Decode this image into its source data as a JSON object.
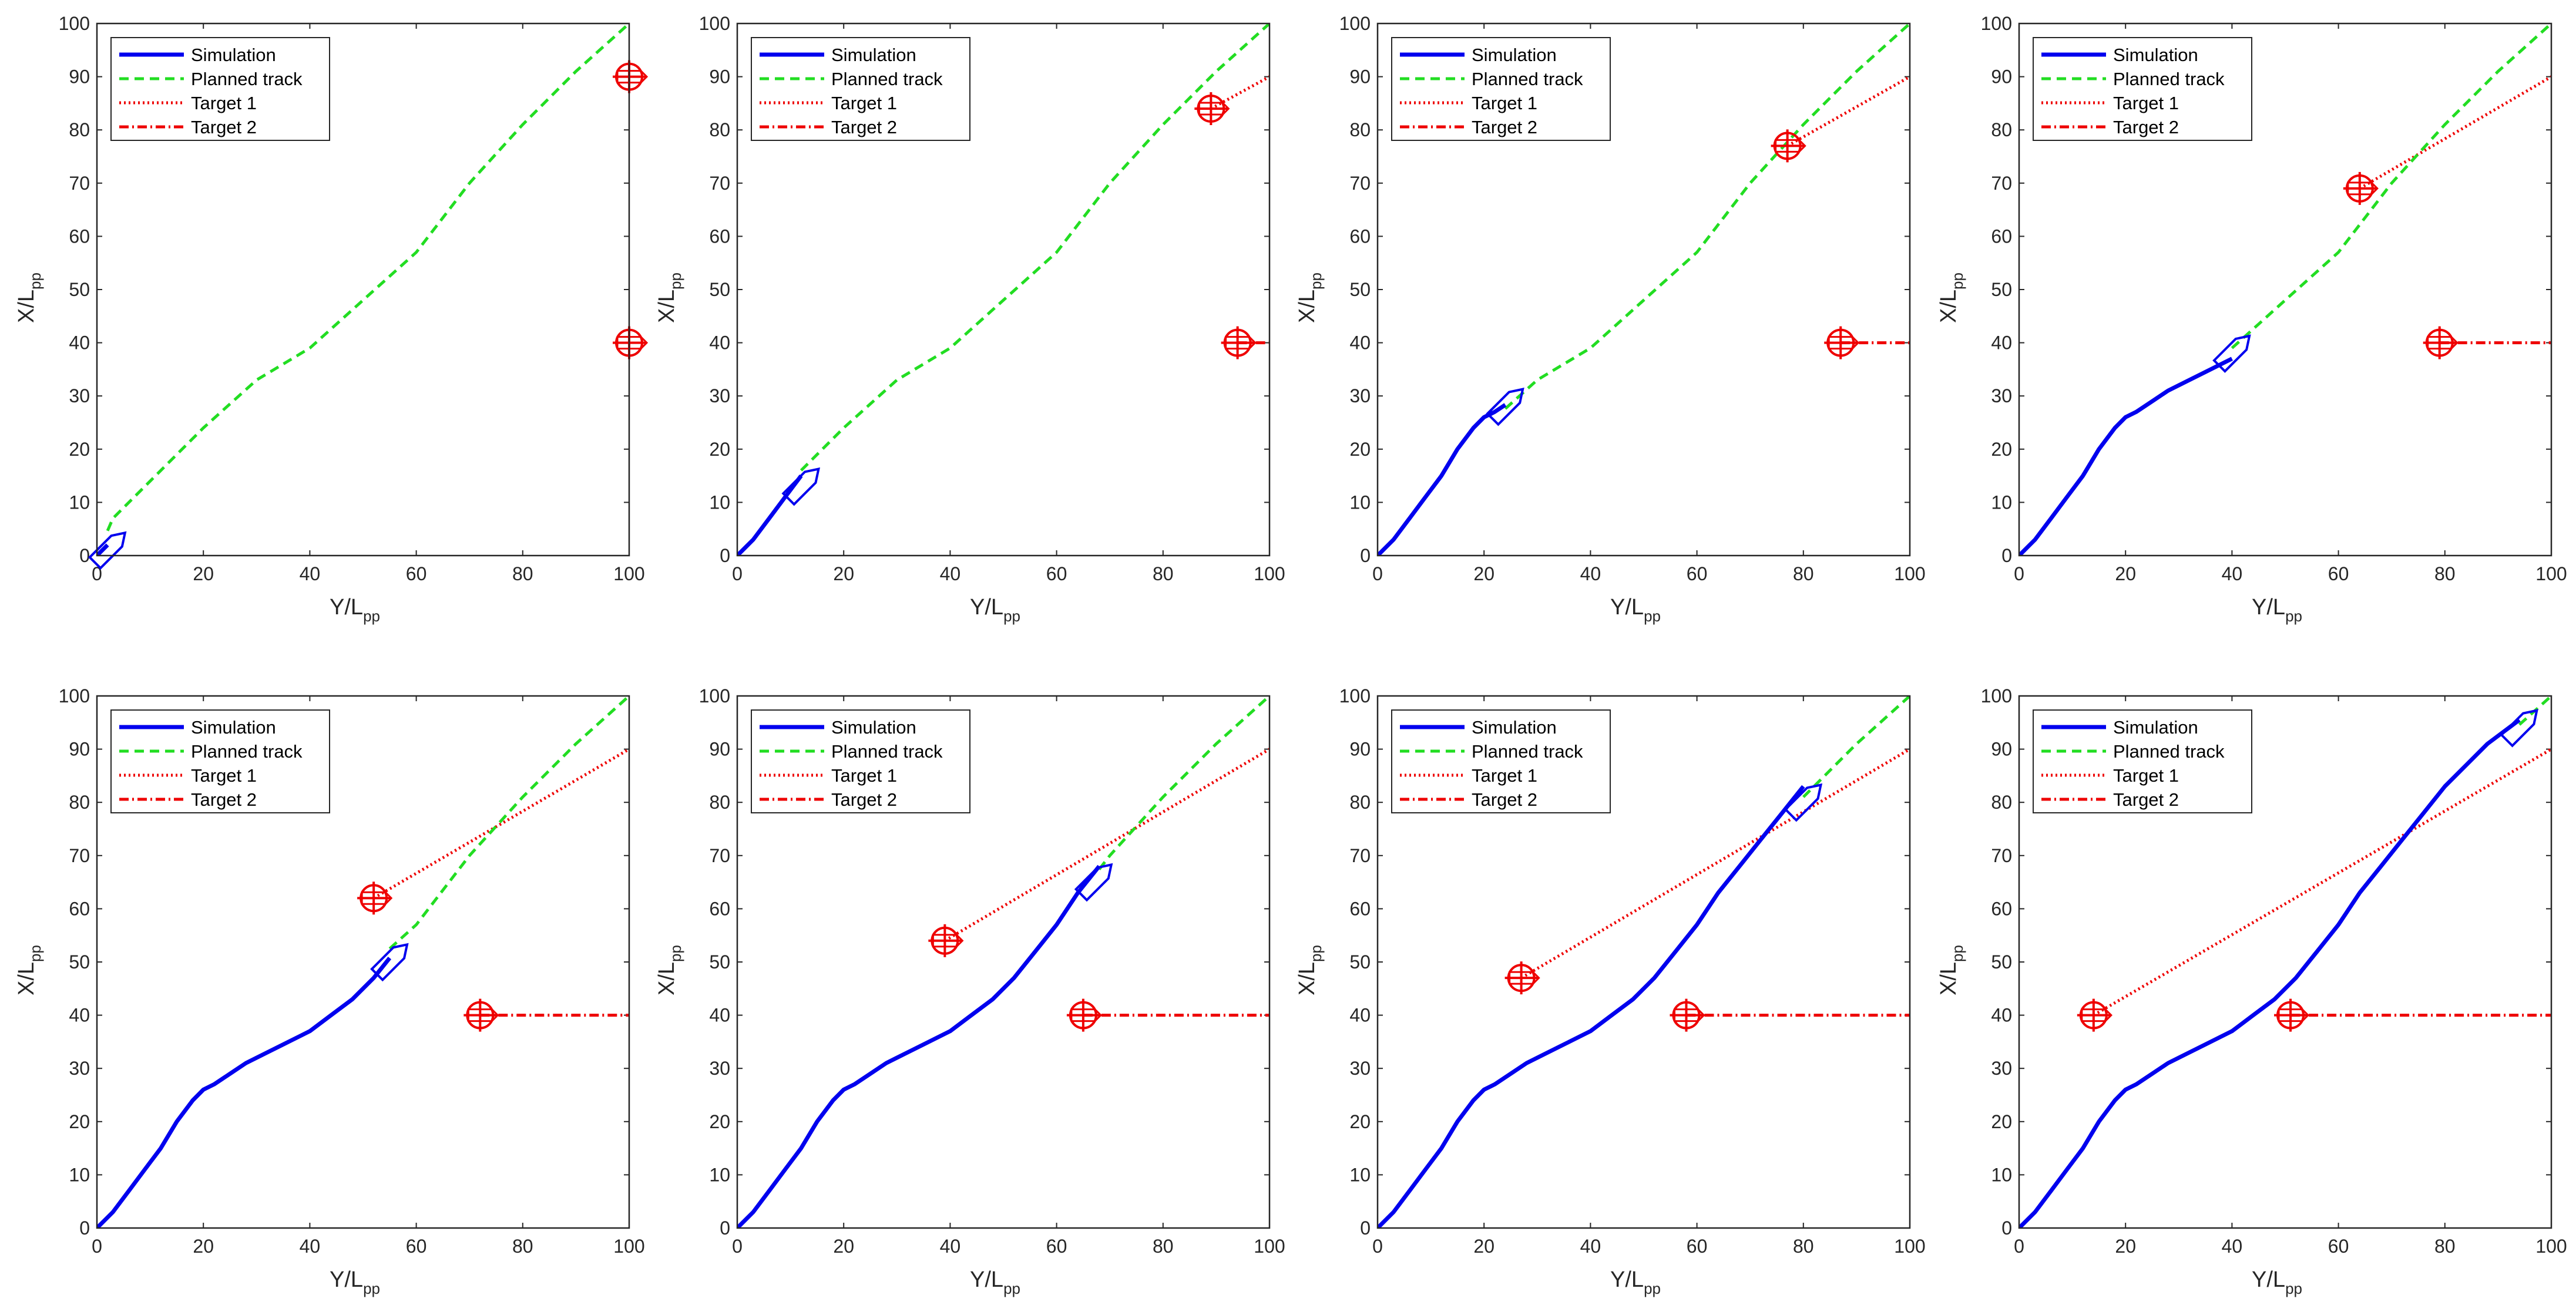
{
  "chart_data": {
    "type": "line",
    "layout": "2 rows x 4 columns of subplots",
    "shared": {
      "xlabel": "Y/L",
      "xlabel_sub": "pp",
      "ylabel": "X/L",
      "ylabel_sub": "pp",
      "xlim": [
        0,
        100
      ],
      "ylim": [
        0,
        100
      ],
      "xticks": [
        0,
        20,
        40,
        60,
        80,
        100
      ],
      "yticks": [
        0,
        10,
        20,
        30,
        40,
        50,
        60,
        70,
        80,
        90,
        100
      ],
      "legend_position": "top-left",
      "legend": [
        {
          "name": "Simulation",
          "color": "#0000ee",
          "style": "solid"
        },
        {
          "name": "Planned track",
          "color": "#22dd22",
          "style": "dashed"
        },
        {
          "name": "Target 1",
          "color": "#ee0000",
          "style": "dotted"
        },
        {
          "name": "Target 2",
          "color": "#ee0000",
          "style": "dashdot"
        }
      ],
      "planned_track": {
        "x": [
          0,
          3,
          10,
          20,
          30,
          40,
          50,
          60,
          70,
          80,
          90,
          100
        ],
        "y": [
          0,
          7,
          14,
          24,
          33,
          39,
          48,
          57,
          70,
          81,
          91,
          100
        ]
      },
      "simulation_full": {
        "x": [
          0,
          3,
          6,
          9,
          12,
          15,
          18,
          20,
          22,
          25,
          28,
          32,
          36,
          40,
          44,
          48,
          52,
          56,
          60,
          64,
          68,
          72,
          76,
          80,
          84,
          88,
          92,
          96
        ],
        "y": [
          0,
          3,
          7,
          11,
          15,
          20,
          24,
          26,
          27,
          29,
          31,
          33,
          35,
          37,
          40,
          43,
          47,
          52,
          57,
          63,
          68,
          73,
          78,
          83,
          87,
          91,
          94,
          97
        ]
      }
    },
    "panels": [
      {
        "sim_end_x": 2,
        "own_ship": {
          "x": 2,
          "y": 1
        },
        "target1": {
          "x": 100,
          "y": 90
        },
        "target2": {
          "x": 100,
          "y": 40
        }
      },
      {
        "sim_end_x": 12,
        "own_ship": {
          "x": 12,
          "y": 13
        },
        "target1": {
          "x": 89,
          "y": 84
        },
        "target2": {
          "x": 94,
          "y": 40
        }
      },
      {
        "sim_end_x": 24,
        "own_ship": {
          "x": 24,
          "y": 28
        },
        "target1": {
          "x": 77,
          "y": 77
        },
        "target2": {
          "x": 87,
          "y": 40
        }
      },
      {
        "sim_end_x": 40,
        "own_ship": {
          "x": 40,
          "y": 38
        },
        "target1": {
          "x": 64,
          "y": 69
        },
        "target2": {
          "x": 79,
          "y": 40
        }
      },
      {
        "sim_end_x": 55,
        "own_ship": {
          "x": 55,
          "y": 50
        },
        "target1": {
          "x": 52,
          "y": 62
        },
        "target2": {
          "x": 72,
          "y": 40
        }
      },
      {
        "sim_end_x": 68,
        "own_ship": {
          "x": 67,
          "y": 65
        },
        "target1": {
          "x": 39,
          "y": 54
        },
        "target2": {
          "x": 65,
          "y": 40
        }
      },
      {
        "sim_end_x": 80,
        "own_ship": {
          "x": 80,
          "y": 80
        },
        "target1": {
          "x": 27,
          "y": 47
        },
        "target2": {
          "x": 58,
          "y": 40
        }
      },
      {
        "sim_end_x": 94,
        "own_ship": {
          "x": 94,
          "y": 94
        },
        "target1": {
          "x": 14,
          "y": 40
        },
        "target2": {
          "x": 51,
          "y": 40
        }
      }
    ]
  }
}
